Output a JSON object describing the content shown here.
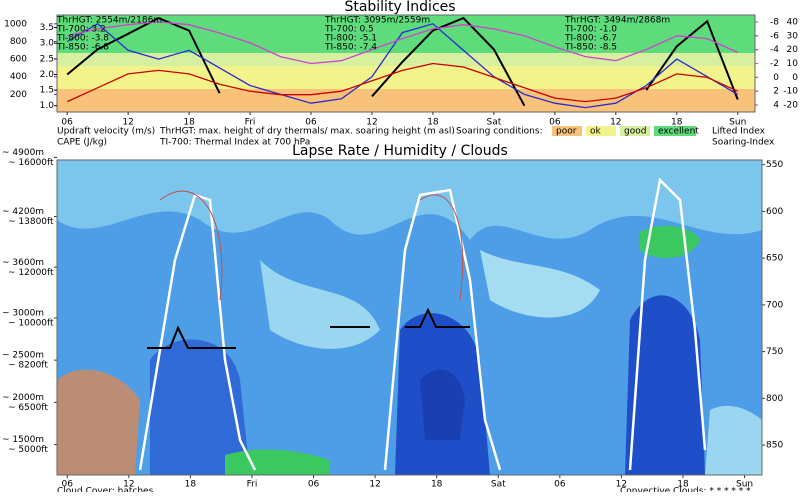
{
  "chart_data": [
    {
      "type": "line",
      "title": "Stability Indices",
      "x": [
        6,
        9,
        12,
        15,
        18,
        21,
        24,
        27,
        30,
        33,
        36,
        39,
        42,
        45,
        48,
        51,
        54,
        57,
        60,
        63,
        66,
        69,
        72
      ],
      "xlim": [
        5,
        73.7
      ],
      "xticks": [
        {
          "value": 6,
          "label": "06"
        },
        12,
        18,
        {
          "value": 24,
          "label": "Fri"
        },
        {
          "value": 30,
          "label": "06"
        },
        {
          "value": 36,
          "label": "12"
        },
        {
          "value": 42,
          "label": "18"
        },
        {
          "value": 48,
          "label": "Sat"
        },
        {
          "value": 54,
          "label": "06"
        },
        {
          "value": 60,
          "label": "12"
        },
        {
          "value": 66,
          "label": "18"
        },
        {
          "value": 72,
          "label": "Sun"
        }
      ],
      "ylim": [
        0.8,
        3.9
      ],
      "yticks": [
        {
          "value": 1,
          "label": "1.0"
        },
        1.5,
        {
          "value": 2,
          "label": "2.0"
        },
        2.5,
        {
          "value": 3,
          "label": "3.0"
        },
        3.5
      ],
      "capelim": [
        0,
        1100
      ],
      "capeticks": [
        200,
        400,
        600,
        800,
        1000
      ],
      "y2lim": [
        5,
        -9
      ],
      "y2ticks": [
        4,
        2,
        0,
        -2,
        -4,
        -6,
        -8
      ],
      "y3lim": [
        -25,
        45
      ],
      "y3ticks": [
        -20,
        -10,
        0,
        10,
        20,
        30,
        40
      ],
      "series": [
        {
          "name": "Updraft velocity (m/s)",
          "color": "#000000",
          "axis": "y",
          "values": [
            2.0,
            2.8,
            3.3,
            3.8,
            3.4,
            1.4,
            null,
            null,
            null,
            null,
            1.3,
            2.4,
            3.4,
            3.8,
            2.8,
            1.0,
            null,
            null,
            null,
            1.5,
            2.9,
            3.7,
            1.2
          ]
        },
        {
          "name": "CAPE (J/kg)",
          "color": "#2a2ad0",
          "axis": "cape",
          "values": [
            800,
            1000,
            700,
            600,
            700,
            500,
            300,
            200,
            100,
            150,
            400,
            900,
            1000,
            700,
            400,
            200,
            100,
            50,
            100,
            300,
            600,
            400,
            200
          ]
        },
        {
          "name": "Lifted Index",
          "color": "#cc0000",
          "axis": "y2",
          "values": [
            3.5,
            1.5,
            -0.5,
            -1,
            -0.5,
            1,
            2,
            2.5,
            2.5,
            2,
            0.5,
            -1,
            -2,
            -1.5,
            0,
            1.5,
            3,
            3.5,
            3,
            1.5,
            -0.5,
            0,
            2
          ]
        },
        {
          "name": "Soaring-Index",
          "color": "#cc44cc",
          "axis": "y3",
          "values": [
            30,
            35,
            38,
            40,
            38,
            32,
            25,
            15,
            10,
            12,
            20,
            28,
            35,
            38,
            35,
            30,
            22,
            15,
            12,
            20,
            30,
            28,
            18
          ]
        }
      ],
      "annotations": [
        [
          "ThrHGT: 2554m/2186m",
          "TI-700: 3.2",
          "TI-800: -3.8",
          "TI-850: -6.8"
        ],
        [
          "ThrHGT: 3095m/2559m",
          "TI-700: 0.5",
          "TI-800: -5.1",
          "TI-850: -7.4"
        ],
        [
          "ThrHGT: 3494m/2868m",
          "TI-700: -1.0",
          "TI-800: -6.7",
          "TI-850: -8.5"
        ]
      ],
      "notes": [
        "ThrHGT: max. height of dry thermals/ max. soaring height (m asl)",
        "TI-700: Thermal Index at 700 hPa"
      ],
      "conditions": {
        "title": "Soaring conditions:",
        "items": [
          {
            "label": "poor",
            "color": "#f8c27a"
          },
          {
            "label": "ok",
            "color": "#f3f38c"
          },
          {
            "label": "good",
            "color": "#d6f0a0"
          },
          {
            "label": "excellent",
            "color": "#5edc7c"
          }
        ]
      }
    },
    {
      "type": "contour",
      "title": "Lapse Rate / Humidity / Clouds",
      "xlim": [
        5,
        73.7
      ],
      "xticks": [
        {
          "value": 6,
          "label": "06"
        },
        12,
        18,
        {
          "value": 24,
          "label": "Fri"
        },
        {
          "value": 30,
          "label": "06"
        },
        {
          "value": 36,
          "label": "12"
        },
        {
          "value": 42,
          "label": "18"
        },
        {
          "value": 48,
          "label": "Sat"
        },
        {
          "value": 54,
          "label": "06"
        },
        {
          "value": 60,
          "label": "12"
        },
        {
          "value": 66,
          "label": "18"
        },
        {
          "value": 72,
          "label": "Sun"
        }
      ],
      "ylim": [
        1140,
        4870
      ],
      "yticks": [
        {
          "value": 4900,
          "label": "~ 4900m"
        },
        {
          "value": 4200,
          "label": "~ 4200m"
        },
        {
          "value": 3600,
          "label": "~ 3600m"
        },
        {
          "value": 3000,
          "label": "~ 3000m"
        },
        {
          "value": 2500,
          "label": "~ 2500m"
        },
        {
          "value": 2000,
          "label": "~ 2000m"
        },
        {
          "value": 1500,
          "label": "~ 1500m"
        }
      ],
      "yticks_ft": [
        "~ 16000ft",
        "~ 13800ft",
        "~ 12000ft",
        "~ 10000ft",
        "~ 8200ft",
        "~ 6500ft",
        "~ 5000ft"
      ],
      "y2lim": [
        882,
        545
      ],
      "y2ticks": [
        550,
        600,
        650,
        700,
        750,
        800,
        850
      ],
      "footer": [
        "Cloud Cover: hatches",
        "Convective Clouds: * * * * * *"
      ]
    }
  ]
}
